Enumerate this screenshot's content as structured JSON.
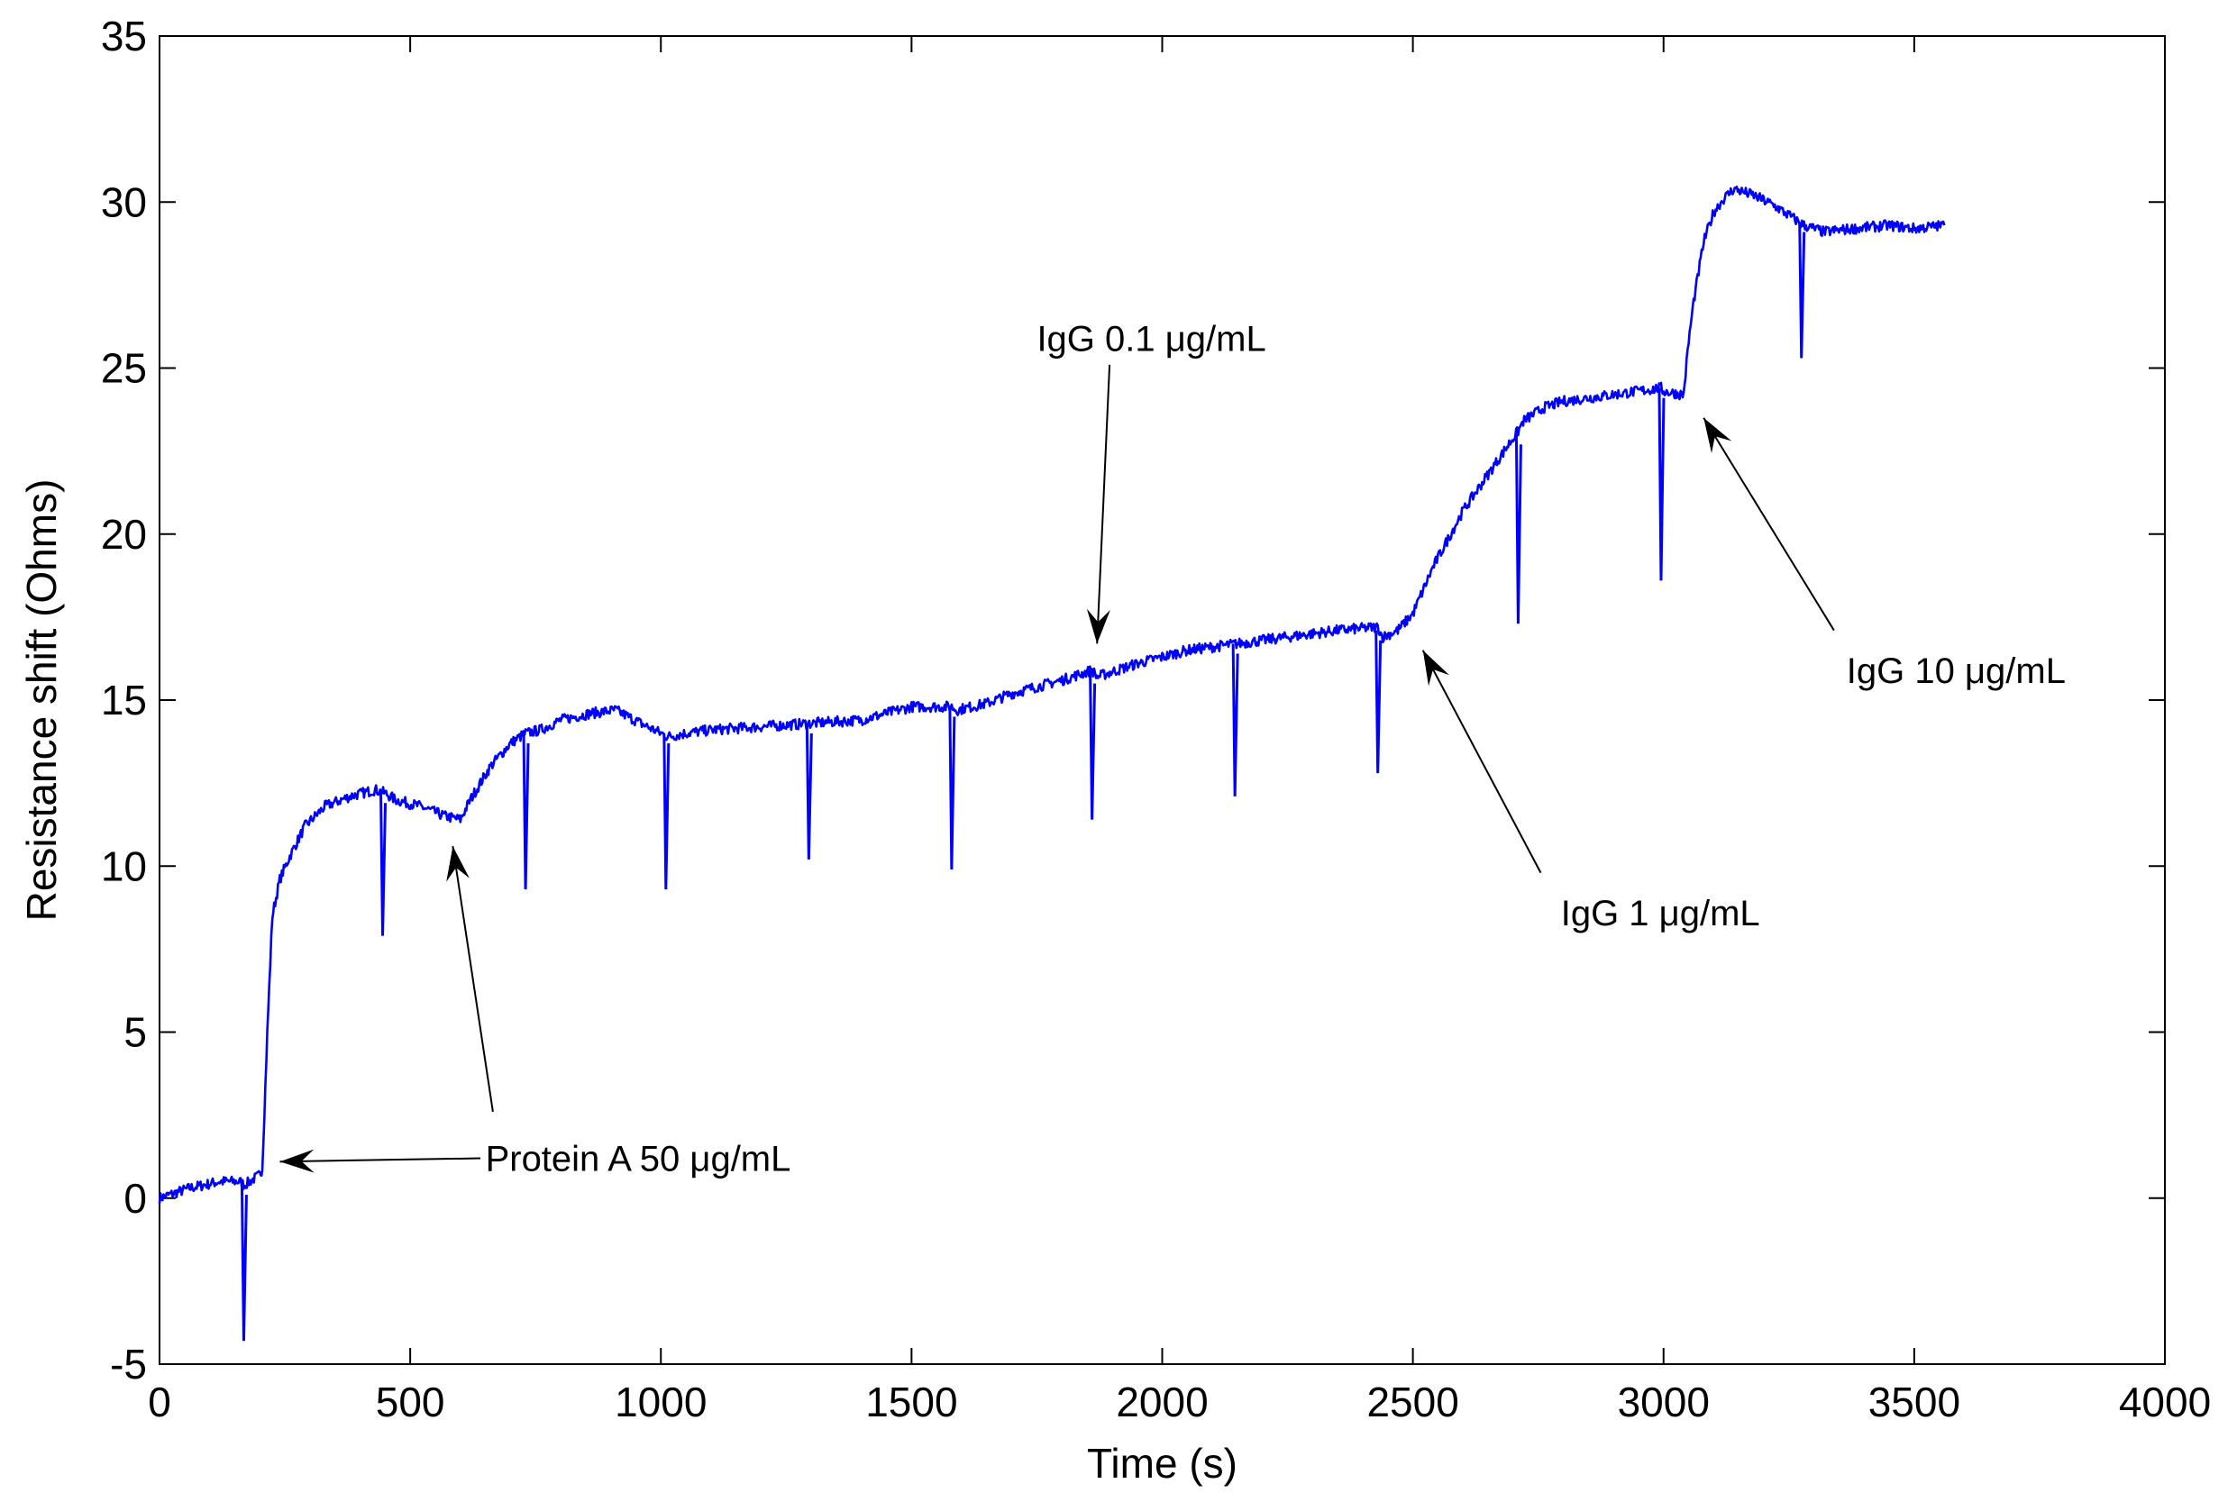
{
  "chart_data": {
    "type": "line",
    "title": "",
    "xlabel": "Time (s)",
    "ylabel": "Resistance shift (Ohms)",
    "xlim": [
      0,
      4000
    ],
    "ylim": [
      -5,
      35
    ],
    "xticks": [
      0,
      500,
      1000,
      1500,
      2000,
      2500,
      3000,
      3500,
      4000
    ],
    "yticks": [
      -5,
      0,
      5,
      10,
      15,
      20,
      25,
      30,
      35
    ],
    "grid": false,
    "line_color": "#0000ff",
    "series": [
      {
        "name": "Resistance shift",
        "x": [
          0,
          60,
          120,
          160,
          170,
          200,
          205,
          215,
          225,
          240,
          260,
          290,
          330,
          380,
          430,
          450,
          470,
          520,
          570,
          600,
          620,
          660,
          700,
          730,
          760,
          800,
          860,
          910,
          960,
          1000,
          1015,
          1050,
          1100,
          1200,
          1300,
          1400,
          1450,
          1500,
          1580,
          1590,
          1650,
          1700,
          1800,
          1860,
          1870,
          1950,
          2050,
          2150,
          2250,
          2350,
          2430,
          2440,
          2470,
          2500,
          2540,
          2600,
          2650,
          2700,
          2710,
          2720,
          2760,
          2800,
          2900,
          2995,
          3000,
          3040,
          3050,
          3060,
          3080,
          3100,
          3120,
          3140,
          3180,
          3220,
          3270,
          3280,
          3320,
          3380,
          3450,
          3500,
          3560
        ],
        "y": [
          0,
          0.3,
          0.5,
          0.5,
          0.4,
          0.7,
          0.9,
          5,
          8.5,
          9.6,
          10.3,
          11.2,
          11.8,
          12.1,
          12.3,
          12.2,
          12.0,
          11.8,
          11.5,
          11.4,
          12.0,
          13.0,
          13.7,
          14.0,
          14.1,
          14.4,
          14.6,
          14.7,
          14.3,
          14.0,
          13.9,
          14.0,
          14.1,
          14.2,
          14.3,
          14.4,
          14.6,
          14.8,
          14.8,
          14.7,
          14.9,
          15.2,
          15.6,
          15.9,
          15.7,
          16.1,
          16.5,
          16.7,
          16.9,
          17.1,
          17.2,
          16.9,
          17.1,
          17.6,
          19.0,
          20.7,
          21.8,
          22.9,
          23.1,
          23.4,
          23.8,
          24.0,
          24.2,
          24.4,
          24.3,
          24.2,
          25.8,
          27.0,
          28.8,
          29.7,
          30.1,
          30.4,
          30.2,
          29.9,
          29.4,
          29.3,
          29.1,
          29.2,
          29.3,
          29.2,
          29.3
        ]
      }
    ],
    "spikes": [
      {
        "x": 168,
        "base": 0.4,
        "min": -4.3
      },
      {
        "x": 445,
        "base": 12.2,
        "min": 7.9
      },
      {
        "x": 730,
        "base": 14.0,
        "min": 9.3
      },
      {
        "x": 1010,
        "base": 14.0,
        "min": 9.3
      },
      {
        "x": 1295,
        "base": 14.3,
        "min": 10.2
      },
      {
        "x": 1580,
        "base": 14.8,
        "min": 9.9
      },
      {
        "x": 1860,
        "base": 15.8,
        "min": 11.4
      },
      {
        "x": 2145,
        "base": 16.7,
        "min": 12.1
      },
      {
        "x": 2430,
        "base": 17.1,
        "min": 12.8
      },
      {
        "x": 2710,
        "base": 23.0,
        "min": 17.3
      },
      {
        "x": 2995,
        "base": 24.4,
        "min": 18.6
      },
      {
        "x": 3275,
        "base": 29.4,
        "min": 25.3
      }
    ],
    "annotations": [
      {
        "text": "Protein A 50 μg/mL",
        "text_x": 650,
        "text_y": 1.2,
        "arrow_tail_x": 640,
        "arrow_tail_y": 1.2,
        "arrow_head_x": 240,
        "arrow_head_y": 1.1
      },
      {
        "text": "Protein A 50 μg/mL",
        "text_x": null,
        "text_y": null,
        "arrow_tail_x": 665,
        "arrow_tail_y": 2.6,
        "arrow_head_x": 585,
        "arrow_head_y": 10.6
      },
      {
        "text": "IgG 0.1 μg/mL",
        "text_x": 1750,
        "text_y": 25.9,
        "arrow_tail_x": 1895,
        "arrow_tail_y": 25.1,
        "arrow_head_x": 1870,
        "arrow_head_y": 16.7
      },
      {
        "text": "IgG 1 μg/mL",
        "text_x": 2795,
        "text_y": 8.6,
        "arrow_tail_x": 2755,
        "arrow_tail_y": 9.8,
        "arrow_head_x": 2520,
        "arrow_head_y": 16.5
      },
      {
        "text": "IgG 10 μg/mL",
        "text_x": 3365,
        "text_y": 15.9,
        "arrow_tail_x": 3340,
        "arrow_tail_y": 17.1,
        "arrow_head_x": 3080,
        "arrow_head_y": 23.5
      }
    ]
  }
}
